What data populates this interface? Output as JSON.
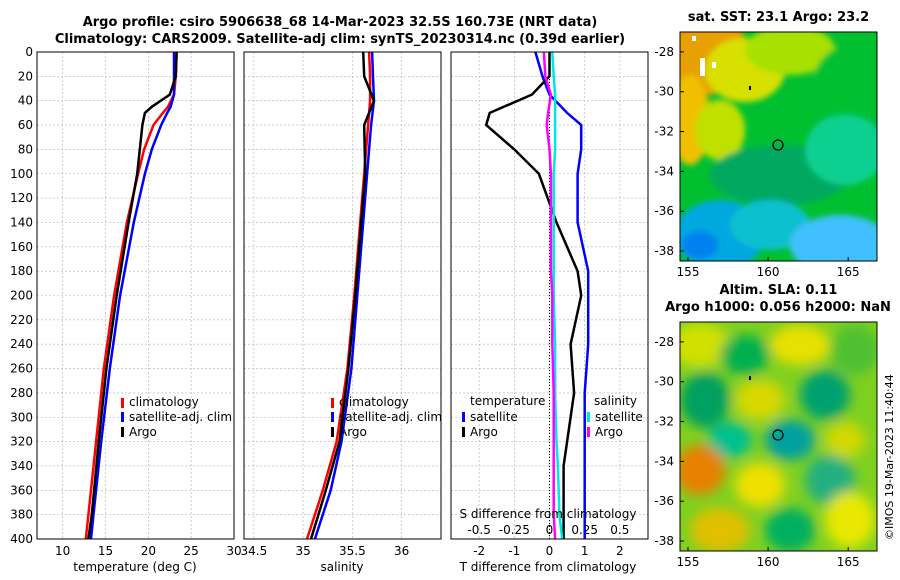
{
  "header": {
    "line1": "Argo profile: csiro 5906638_68 14-Mar-2023 32.5S 160.73E (NRT data)",
    "line2": "Climatology: CARS2009. Satellite-adj clim: synTS_20230314.nc (0.39d earlier)"
  },
  "colors": {
    "clim": "#ff0000",
    "sat": "#0000ff",
    "argo": "#000000",
    "sal_sat": "#00e5e5",
    "sal_argo": "#ff00ff"
  },
  "chart_data": [
    {
      "type": "line",
      "id": "temperature",
      "xlabel": "temperature (deg C)",
      "xlim": [
        7,
        30
      ],
      "ylim": [
        0,
        400
      ],
      "xticks": [
        "10",
        "15",
        "20",
        "25",
        "30"
      ],
      "yticks": [
        "0",
        "20",
        "40",
        "60",
        "80",
        "100",
        "120",
        "140",
        "160",
        "180",
        "200",
        "220",
        "240",
        "260",
        "280",
        "300",
        "320",
        "340",
        "360",
        "380",
        "400"
      ],
      "legend": [
        "climatology",
        "satellite-adj. clim",
        "Argo"
      ],
      "depth": [
        0,
        20,
        35,
        45,
        50,
        60,
        80,
        100,
        140,
        200,
        260,
        320,
        380,
        400
      ],
      "series": [
        {
          "name": "climatology",
          "values": [
            23.3,
            23.2,
            23.0,
            22.3,
            21.7,
            20.6,
            19.5,
            18.8,
            17.5,
            16.0,
            14.8,
            13.9,
            13.0,
            12.7
          ]
        },
        {
          "name": "satellite-adj. clim",
          "values": [
            23.0,
            23.0,
            23.0,
            22.6,
            22.2,
            21.5,
            20.4,
            19.6,
            18.3,
            16.7,
            15.5,
            14.5,
            13.6,
            13.3
          ]
        },
        {
          "name": "Argo",
          "values": [
            23.3,
            23.2,
            22.5,
            20.4,
            19.6,
            19.3,
            19.0,
            18.7,
            17.7,
            16.3,
            15.1,
            14.2,
            13.4,
            13.0
          ]
        }
      ]
    },
    {
      "type": "line",
      "id": "salinity",
      "xlabel": "salinity",
      "xlim": [
        34.4,
        36.4
      ],
      "ylim": [
        0,
        400
      ],
      "xticks": [
        "34.5",
        "35",
        "35.5",
        "36"
      ],
      "legend": [
        "climatology",
        "satellite-adj. clim",
        "Argo"
      ],
      "depth": [
        0,
        20,
        40,
        60,
        100,
        140,
        200,
        260,
        320,
        360,
        400
      ],
      "series": [
        {
          "name": "climatology",
          "values": [
            35.67,
            35.68,
            35.68,
            35.66,
            35.62,
            35.58,
            35.52,
            35.45,
            35.34,
            35.2,
            35.04
          ]
        },
        {
          "name": "satellite-adj. clim",
          "values": [
            35.7,
            35.71,
            35.72,
            35.69,
            35.65,
            35.61,
            35.55,
            35.49,
            35.39,
            35.28,
            35.12
          ]
        },
        {
          "name": "Argo",
          "values": [
            35.61,
            35.62,
            35.72,
            35.62,
            35.63,
            35.59,
            35.53,
            35.46,
            35.37,
            35.23,
            35.08
          ]
        }
      ]
    },
    {
      "type": "line",
      "id": "difference",
      "xlabel": "T difference from climatology",
      "xlabel_top": "S difference from climatology",
      "xlim": [
        -2.8,
        2.8
      ],
      "xlim_sal": [
        -0.7,
        0.7
      ],
      "ylim": [
        0,
        400
      ],
      "xticks": [
        "-2",
        "-1",
        "0",
        "1",
        "2"
      ],
      "xticks_top": [
        "-0.5",
        "-0.25",
        "0",
        "0.25",
        "0.5"
      ],
      "legend_left_title": "temperature",
      "legend_right_title": "salinity",
      "legend_left": [
        "satellite",
        "Argo"
      ],
      "legend_right": [
        "satellite",
        "Argo"
      ],
      "depth": [
        0,
        20,
        35,
        50,
        60,
        80,
        100,
        140,
        180,
        200,
        240,
        280,
        320,
        340,
        380,
        400
      ],
      "series": [
        {
          "name": "temperature satellite",
          "values": [
            -0.4,
            -0.2,
            0.0,
            0.5,
            0.9,
            0.9,
            0.8,
            0.8,
            1.1,
            1.1,
            1.1,
            1.0,
            1.0,
            1.0,
            1.0,
            1.0
          ]
        },
        {
          "name": "temperature Argo",
          "values": [
            0.0,
            0.0,
            -0.5,
            -1.7,
            -1.8,
            -1.0,
            -0.3,
            0.2,
            0.8,
            0.9,
            0.6,
            0.7,
            0.5,
            0.4,
            0.4,
            0.4
          ]
        },
        {
          "name": "salinity satellite",
          "values": [
            0.02,
            0.03,
            0.04,
            0.04,
            0.04,
            0.04,
            0.03,
            0.03,
            0.03,
            0.03,
            0.04,
            0.04,
            0.05,
            0.06,
            0.07,
            0.09
          ]
        },
        {
          "name": "salinity Argo",
          "values": [
            -0.04,
            -0.03,
            0.01,
            -0.01,
            -0.02,
            0.0,
            0.01,
            0.01,
            0.01,
            0.02,
            0.02,
            0.03,
            0.03,
            0.03,
            0.03,
            0.04
          ]
        }
      ]
    }
  ],
  "maps": {
    "sst": {
      "title": "sat. SST: 23.1 Argo: 23.2",
      "xticks": [
        "155",
        "160",
        "165"
      ],
      "yticks": [
        "-28",
        "-30",
        "-32",
        "-34",
        "-36",
        "-38"
      ]
    },
    "sla": {
      "title1": "Altim. SLA: 0.11",
      "title2": "Argo h1000: 0.056 h2000: NaN",
      "xticks": [
        "155",
        "160",
        "165"
      ],
      "yticks": [
        "-28",
        "-30",
        "-32",
        "-34",
        "-36",
        "-38"
      ]
    }
  },
  "footer": {
    "imos": "©IMOS 19-Mar-2023 11:40:44"
  }
}
